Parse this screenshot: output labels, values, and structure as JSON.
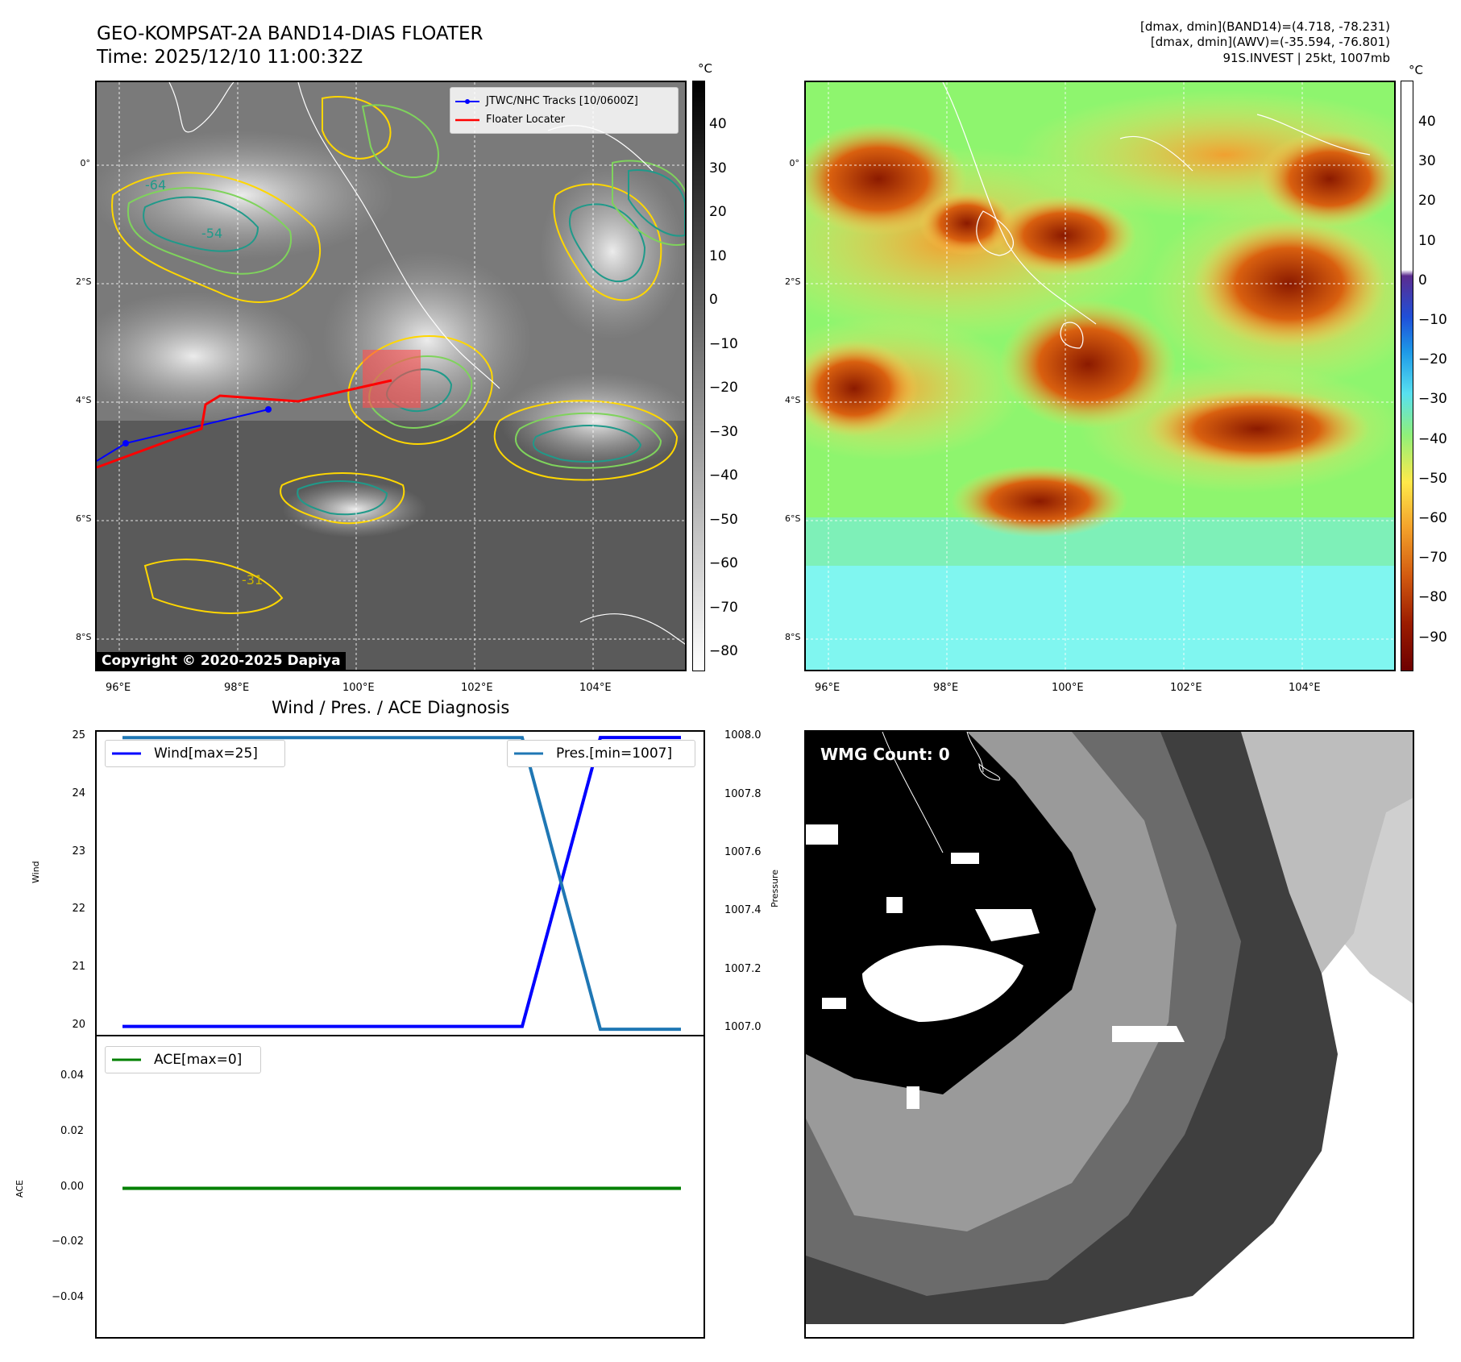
{
  "header": {
    "title_line1": "GEO-KOMPSAT-2A BAND14-DIAS FLOATER",
    "title_line2": "Time: 2025/12/10 11:00:32Z",
    "info_line1": "[dmax, dmin](BAND14)=(4.718, -78.231)",
    "info_line2": "[dmax, dmin](AWV)=(-35.594, -76.801)",
    "info_line3": "91S.INVEST | 25kt, 1007mb"
  },
  "map_axes": {
    "lat_labels": [
      "0°",
      "2°S",
      "4°S",
      "6°S",
      "8°S"
    ],
    "lon_labels": [
      "96°E",
      "98°E",
      "100°E",
      "102°E",
      "104°E"
    ]
  },
  "ir_panel": {
    "legend": [
      "JTWC/NHC Tracks [10/0600Z]",
      "Floater Locater"
    ],
    "contour_labels": [
      "-64",
      "-54",
      "-31"
    ],
    "copyright": "Copyright © 2020-2025 Dapiya",
    "colorbar_unit": "°C",
    "colorbar_ticks": [
      "40",
      "30",
      "20",
      "10",
      "0",
      "−10",
      "−20",
      "−30",
      "−40",
      "−50",
      "−60",
      "−70",
      "−80"
    ],
    "colors": {
      "jtwc_track": "#0000ff",
      "floater_locater": "#ff0000"
    }
  },
  "awv_panel": {
    "colorbar_unit": "°C",
    "colorbar_ticks": [
      "40",
      "30",
      "20",
      "10",
      "0",
      "−10",
      "−20",
      "−30",
      "−40",
      "−50",
      "−60",
      "−70",
      "−80",
      "−90"
    ]
  },
  "diag_title": "Wind / Pres. / ACE Diagnosis",
  "wmg_panel": {
    "label": "WMG Count: 0"
  },
  "chart_data": [
    {
      "type": "line",
      "title": "Wind / Pres. / ACE Diagnosis",
      "ylabel": "Wind",
      "y2label": "Pressure",
      "ylim": [
        19.8,
        25.1
      ],
      "y2lim": [
        1006.97,
        1008.02
      ],
      "yticks": [
        "20",
        "21",
        "22",
        "23",
        "24",
        "25"
      ],
      "y2ticks": [
        "1007.0",
        "1007.2",
        "1007.4",
        "1007.6",
        "1007.8",
        "1008.0"
      ],
      "x": [
        0,
        1,
        2
      ],
      "series": [
        {
          "name": "Wind[max=25]",
          "values": [
            20,
            20,
            25
          ],
          "color": "#0000ff",
          "axis": "left"
        },
        {
          "name": "Pres.[min=1007]",
          "values": [
            1008,
            1008,
            1007
          ],
          "color": "#1f77b4",
          "axis": "right"
        }
      ],
      "legend": [
        "top-left",
        "top-right"
      ]
    },
    {
      "type": "line",
      "ylabel": "ACE",
      "ylim": [
        -0.055,
        0.055
      ],
      "yticks": [
        "0.04",
        "0.02",
        "0.00",
        "−0.02",
        "−0.04"
      ],
      "x": [
        0,
        1,
        2
      ],
      "series": [
        {
          "name": "ACE[max=0]",
          "values": [
            0,
            0,
            0
          ],
          "color": "#008000"
        }
      ],
      "legend": "top-left"
    }
  ]
}
